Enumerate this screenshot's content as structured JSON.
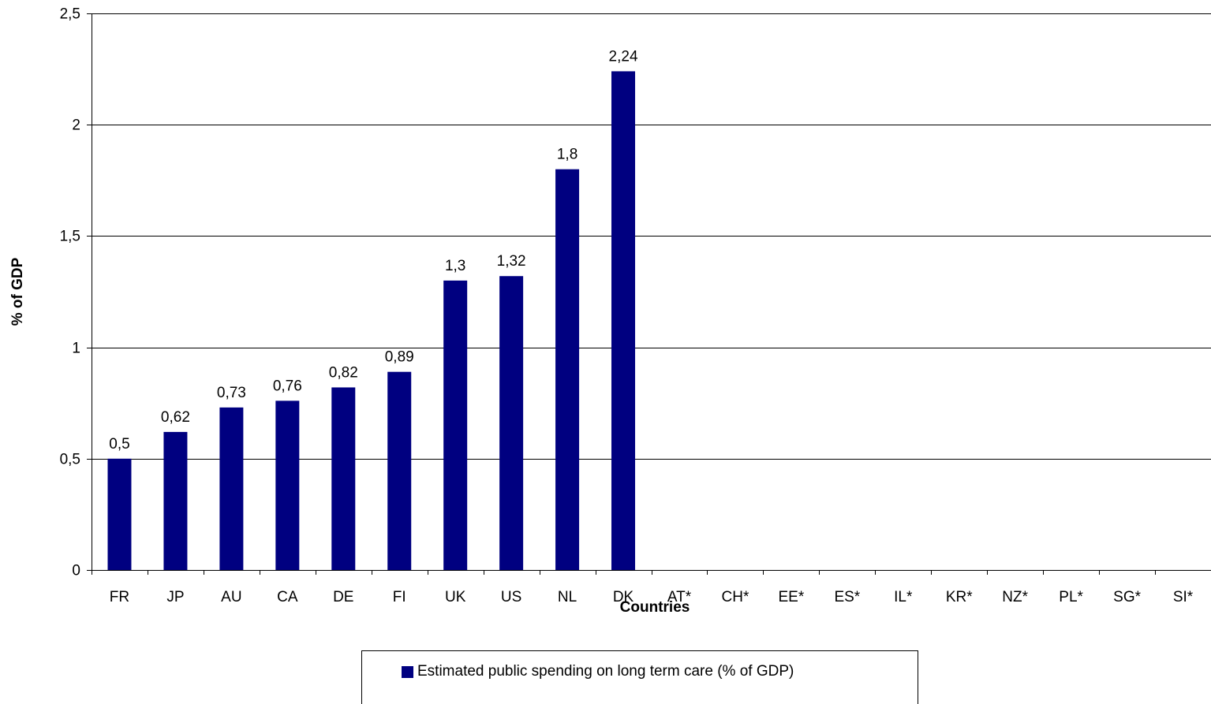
{
  "chart_data": {
    "type": "bar",
    "title": "",
    "xlabel": "Countries",
    "ylabel": "% of GDP",
    "ylim": [
      0,
      2.5
    ],
    "yticks": [
      "0",
      "0,5",
      "1",
      "1,5",
      "2",
      "2,5"
    ],
    "yticks_values": [
      0,
      0.5,
      1,
      1.5,
      2,
      2.5
    ],
    "grid": true,
    "legend_position": "bottom",
    "bar_color": "#000080",
    "categories": [
      "FR",
      "JP",
      "AU",
      "CA",
      "DE",
      "FI",
      "UK",
      "US",
      "NL",
      "DK",
      "AT*",
      "CH*",
      "EE*",
      "ES*",
      "IL*",
      "KR*",
      "NZ*",
      "PL*",
      "SG*",
      "SI*"
    ],
    "series": [
      {
        "name": "Estimated public spending on long term care (% of GDP)",
        "values": [
          0.5,
          0.62,
          0.73,
          0.76,
          0.82,
          0.89,
          1.3,
          1.32,
          1.8,
          2.24,
          null,
          null,
          null,
          null,
          null,
          null,
          null,
          null,
          null,
          null
        ],
        "labels": [
          "0,5",
          "0,62",
          "0,73",
          "0,76",
          "0,82",
          "0,89",
          "1,3",
          "1,32",
          "1,8",
          "2,24",
          "",
          "",
          "",
          "",
          "",
          "",
          "",
          "",
          "",
          ""
        ]
      }
    ]
  }
}
